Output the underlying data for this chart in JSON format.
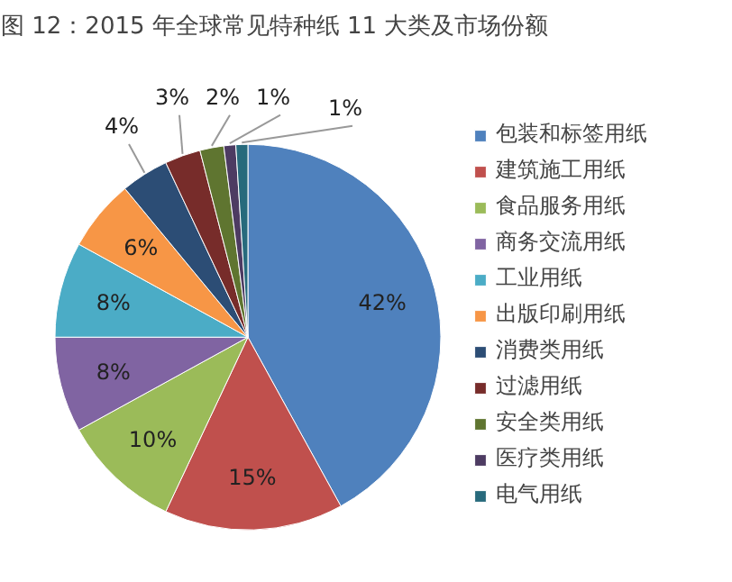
{
  "chart_data": {
    "type": "pie",
    "title": "图 12：2015 年全球常见特种纸 11 大类及市场份额",
    "categories": [
      "包装和标签用纸",
      "建筑施工用纸",
      "食品服务用纸",
      "商务交流用纸",
      "工业用纸",
      "出版印刷用纸",
      "消费类用纸",
      "过滤用纸",
      "安全类用纸",
      "医疗类用纸",
      "电气用纸"
    ],
    "values": [
      42,
      15,
      10,
      8,
      8,
      6,
      4,
      3,
      2,
      1,
      1
    ],
    "value_labels": [
      "42%",
      "15%",
      "10%",
      "8%",
      "8%",
      "6%",
      "4%",
      "3%",
      "2%",
      "1%",
      "1%"
    ],
    "colors": [
      "#4f81bd",
      "#c0504d",
      "#9bbb59",
      "#8064a2",
      "#4bacc6",
      "#f79646",
      "#2c4d75",
      "#772c2a",
      "#5f7530",
      "#4d3b62",
      "#276a7c"
    ],
    "legend": "right"
  }
}
